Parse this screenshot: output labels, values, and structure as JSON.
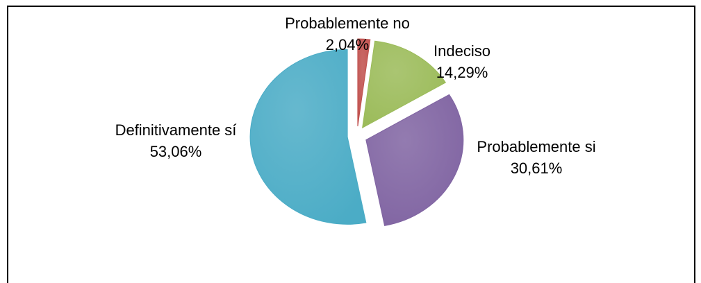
{
  "chart_data": {
    "type": "pie",
    "categories": [
      "Probablemente no",
      "Indeciso",
      "Probablemente si",
      "Definitivamente sí"
    ],
    "values": [
      2.04,
      14.29,
      30.61,
      53.06
    ],
    "value_labels": [
      "2,04%",
      "14,29%",
      "30,61%",
      "53,06%"
    ],
    "colors": [
      "#c0504d",
      "#9bbb59",
      "#8064a2",
      "#4bacc6"
    ]
  }
}
